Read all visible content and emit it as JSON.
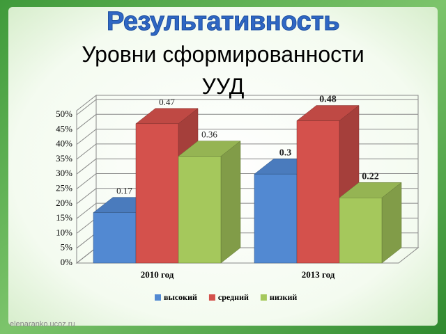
{
  "heading": "Результативность",
  "watermark": "elenaranko.ucoz.ru",
  "chart_data": {
    "type": "bar3d",
    "title": "Уровни сформированности УУД",
    "categories": [
      "2010 год",
      "2013 год"
    ],
    "series": [
      {
        "name": "высокий",
        "color": "#5289d2",
        "values": [
          17,
          30
        ],
        "value_labels": [
          "0.17",
          "0.3"
        ]
      },
      {
        "name": "средний",
        "color": "#d4514c",
        "values": [
          47,
          48
        ],
        "value_labels": [
          "0.47",
          "0.48"
        ]
      },
      {
        "name": "низкий",
        "color": "#a5c85c",
        "values": [
          36,
          22
        ],
        "value_labels": [
          "0.36",
          "0.22"
        ]
      }
    ],
    "ylim": [
      0,
      50
    ],
    "yticks": [
      {
        "value": 0,
        "label": "0%"
      },
      {
        "value": 5,
        "label": "5%"
      },
      {
        "value": 10,
        "label": "10%"
      },
      {
        "value": 15,
        "label": "15%"
      },
      {
        "value": 20,
        "label": "20%"
      },
      {
        "value": 25,
        "label": "25%"
      },
      {
        "value": 30,
        "label": "30%"
      },
      {
        "value": 35,
        "label": "35%"
      },
      {
        "value": 40,
        "label": "40%"
      },
      {
        "value": 45,
        "label": "45%"
      },
      {
        "value": 50,
        "label": "50%"
      }
    ],
    "grid": true,
    "legend": "bottom"
  }
}
